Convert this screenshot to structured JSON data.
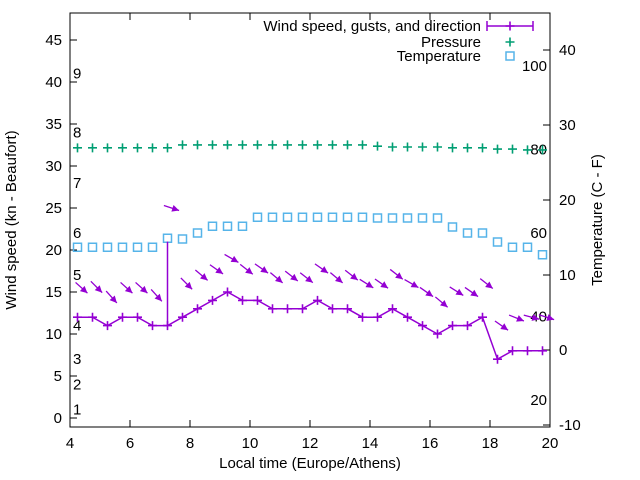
{
  "chart_data": {
    "type": "line",
    "title": "",
    "xlabel": "Local time (Europe/Athens)",
    "ylabel_left": "Wind speed (kn - Beaufort)",
    "ylabel_right": "Temperature (C - F)",
    "x_ticks": [
      4,
      6,
      8,
      10,
      12,
      14,
      16,
      18,
      20
    ],
    "left_ticks": [
      0,
      5,
      10,
      15,
      20,
      25,
      30,
      35,
      40,
      45
    ],
    "right_ticks": [
      -10,
      0,
      10,
      20,
      30,
      40
    ],
    "x_range": [
      4,
      20
    ],
    "left_range": [
      -1,
      48.4
    ],
    "right_range": [
      -10.3,
      45.2
    ],
    "grid": false,
    "legend_position": "top-right-inside",
    "beaufort_labels": [
      {
        "label": "1",
        "kn": 1
      },
      {
        "label": "2",
        "kn": 4
      },
      {
        "label": "3",
        "kn": 7
      },
      {
        "label": "4",
        "kn": 11
      },
      {
        "label": "5",
        "kn": 17
      },
      {
        "label": "6",
        "kn": 22
      },
      {
        "label": "7",
        "kn": 28
      },
      {
        "label": "8",
        "kn": 34
      },
      {
        "label": "9",
        "kn": 41
      }
    ],
    "right_inner_labels": [
      {
        "label": "100",
        "value": 100
      },
      {
        "label": "80",
        "value": 80
      },
      {
        "label": "60",
        "value": 60
      },
      {
        "label": "40",
        "value": 40
      },
      {
        "label": "20",
        "value": 20
      }
    ],
    "x": [
      4.25,
      4.75,
      5.25,
      5.75,
      6.25,
      6.75,
      7.25,
      7.75,
      8.25,
      8.75,
      9.25,
      9.75,
      10.25,
      10.75,
      11.25,
      11.75,
      12.25,
      12.75,
      13.25,
      13.75,
      14.25,
      14.75,
      15.25,
      15.75,
      16.25,
      16.75,
      17.25,
      17.75,
      18.25,
      18.75,
      19.25,
      19.75
    ],
    "series": [
      {
        "name": "Wind speed, gusts, and direction",
        "color": "#9400d3",
        "style": "line-with-plus",
        "axis": "left-kn",
        "values": [
          12,
          12,
          11,
          12,
          12,
          11,
          11,
          12,
          13,
          14,
          15,
          14,
          14,
          13,
          13,
          13,
          14,
          13,
          13,
          12,
          12,
          13,
          12,
          11,
          10,
          11,
          11,
          12,
          7,
          8,
          8,
          8
        ]
      },
      {
        "name": "Wind gusts / direction arrows",
        "color": "#9400d3",
        "style": "direction-arrows",
        "axis": "left-kn",
        "values": [
          15.5,
          15.6,
          14.4,
          15.5,
          15.5,
          14.6,
          25,
          16,
          17,
          17.7,
          19,
          17.7,
          17.8,
          16.7,
          16.9,
          16.7,
          17.8,
          16.7,
          17,
          16,
          16,
          17.1,
          16,
          15,
          13.8,
          15.1,
          15,
          16,
          11,
          11.9,
          12,
          12
        ],
        "angles_deg": [
          42,
          45,
          48,
          42,
          42,
          48,
          18,
          45,
          40,
          35,
          30,
          38,
          35,
          40,
          38,
          38,
          35,
          40,
          38,
          32,
          35,
          38,
          30,
          35,
          40,
          32,
          35,
          38,
          35,
          22,
          15,
          18
        ]
      },
      {
        "name": "Pressure",
        "color": "#009e73",
        "style": "plus-markers",
        "axis": "right-inner",
        "values": [
          80.4,
          80.4,
          80.4,
          80.4,
          80.4,
          80.4,
          80.4,
          81.1,
          81.1,
          81.1,
          81.1,
          81.1,
          81.1,
          81.1,
          81.1,
          81.1,
          81.1,
          81.1,
          81.1,
          81.1,
          80.8,
          80.6,
          80.6,
          80.6,
          80.6,
          80.4,
          80.4,
          80.4,
          80.1,
          80.1,
          79.9,
          79.9
        ]
      },
      {
        "name": "Temperature",
        "color": "#56b4e9",
        "style": "open-squares",
        "axis": "right-celsius",
        "values": [
          13.7,
          13.7,
          13.7,
          13.7,
          13.7,
          13.7,
          14.9,
          14.8,
          15.6,
          16.5,
          16.5,
          16.5,
          17.7,
          17.7,
          17.7,
          17.7,
          17.7,
          17.7,
          17.7,
          17.7,
          17.6,
          17.6,
          17.6,
          17.6,
          17.6,
          16.4,
          15.6,
          15.6,
          14.4,
          13.7,
          13.7,
          12.7
        ]
      }
    ],
    "impulse": {
      "x": 7.25,
      "from_kn": 11,
      "to_kn": 21,
      "color": "#9400d3"
    },
    "legend": {
      "entries": [
        {
          "label": "Wind speed, gusts, and direction",
          "marker": "errorbar-line",
          "color": "#9400d3"
        },
        {
          "label": "Pressure",
          "marker": "plus",
          "color": "#009e73"
        },
        {
          "label": "Temperature",
          "marker": "open-square",
          "color": "#56b4e9"
        }
      ]
    },
    "colors": {
      "axis": "#000000",
      "background": "#ffffff",
      "wind": "#9400d3",
      "pressure": "#009e73",
      "temperature": "#56b4e9"
    }
  }
}
